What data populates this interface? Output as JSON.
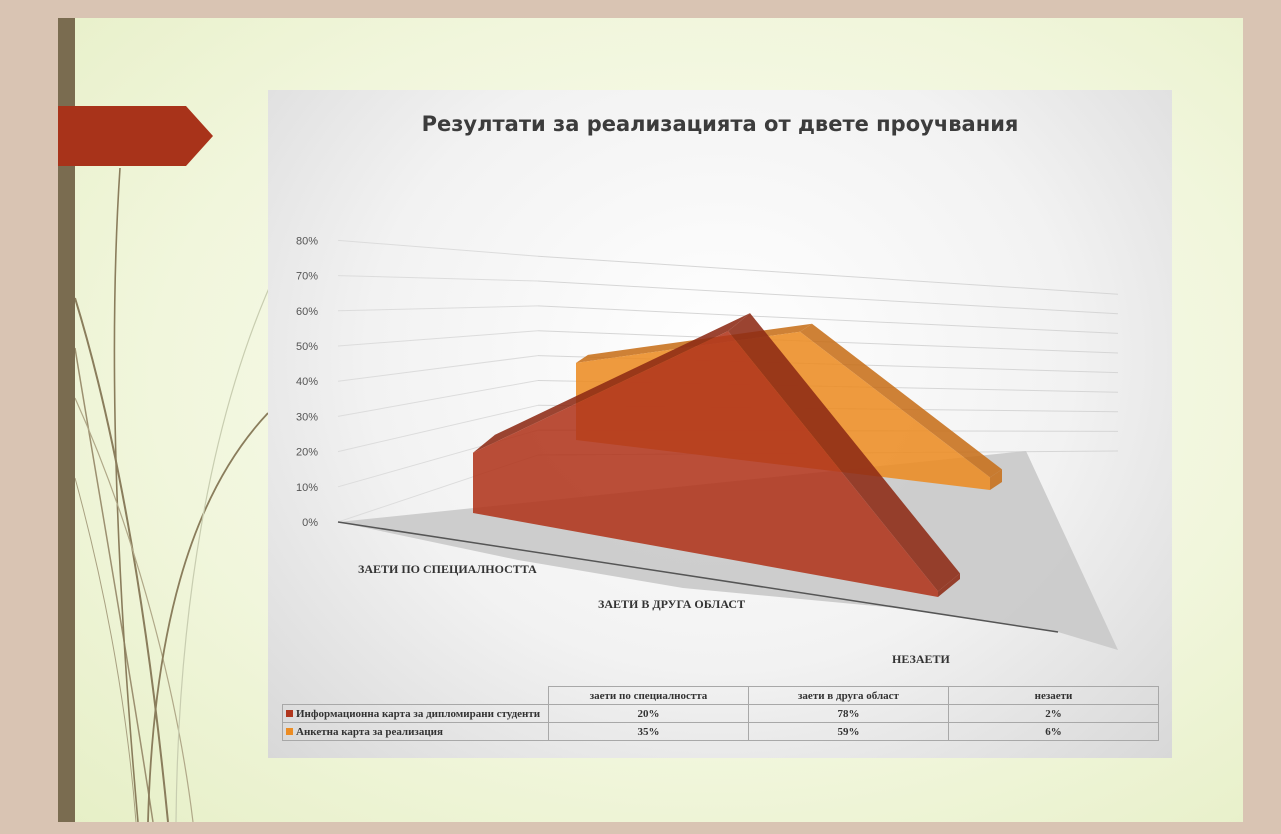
{
  "colors": {
    "series1": "#b0361d",
    "series2": "#ec8c23",
    "tab": "#a8331a"
  },
  "chart_data": {
    "type": "area",
    "title": "Резултати за реализацията от двете проучвания",
    "categories": [
      "ЗАЕТИ ПО СПЕЦИАЛНОСТТА",
      "ЗАЕТИ В ДРУГА ОБЛАСТ",
      "НЕЗАЕТИ"
    ],
    "y_ticks": [
      "0%",
      "10%",
      "20%",
      "30%",
      "40%",
      "50%",
      "60%",
      "70%",
      "80%"
    ],
    "ylim": [
      0,
      80
    ],
    "grid": true,
    "series": [
      {
        "name": "Информационна карта за дипломирани студенти",
        "values": [
          20,
          78,
          2
        ]
      },
      {
        "name": "Анкетна карта за реализация",
        "values": [
          35,
          59,
          6
        ]
      }
    ],
    "table": {
      "headers": [
        "заети по специалността",
        "заети в друга област",
        "незаети"
      ],
      "rows": [
        [
          "20%",
          "78%",
          "2%"
        ],
        [
          "35%",
          "59%",
          "6%"
        ]
      ]
    }
  }
}
